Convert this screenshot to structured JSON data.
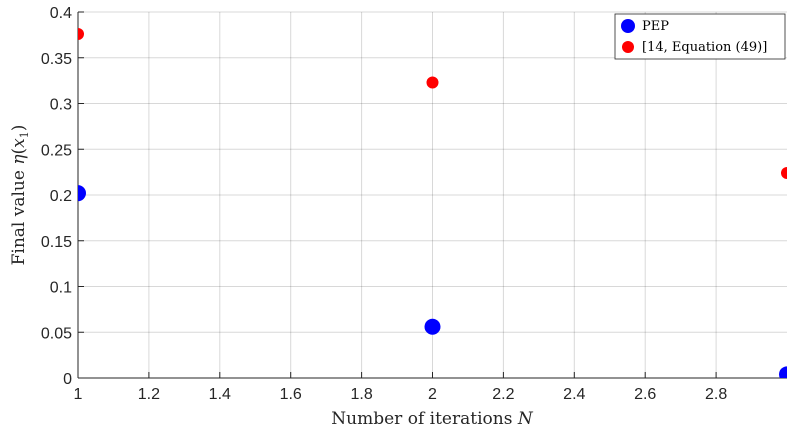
{
  "chart_data": {
    "type": "scatter",
    "xlabel": "Number of iterations N",
    "ylabel": "Final value η(x₁)",
    "xlim": [
      1,
      3
    ],
    "ylim": [
      0,
      0.4
    ],
    "xticks": [
      "1",
      "1.2",
      "1.4",
      "1.6",
      "1.8",
      "2",
      "2.2",
      "2.4",
      "2.6",
      "2.8"
    ],
    "yticks": [
      "0",
      "0.05",
      "0.1",
      "0.15",
      "0.2",
      "0.25",
      "0.3",
      "0.35",
      "0.4"
    ],
    "grid": true,
    "legend_position": "top-right",
    "series": [
      {
        "name": "PEP",
        "color": "#0000ff",
        "x": [
          1,
          2,
          3
        ],
        "y": [
          0.202,
          0.056,
          0.004
        ]
      },
      {
        "name": "[14, Equation (49)]",
        "color": "#ff0000",
        "x": [
          1,
          2,
          3
        ],
        "y": [
          0.376,
          0.323,
          0.224
        ]
      }
    ]
  }
}
